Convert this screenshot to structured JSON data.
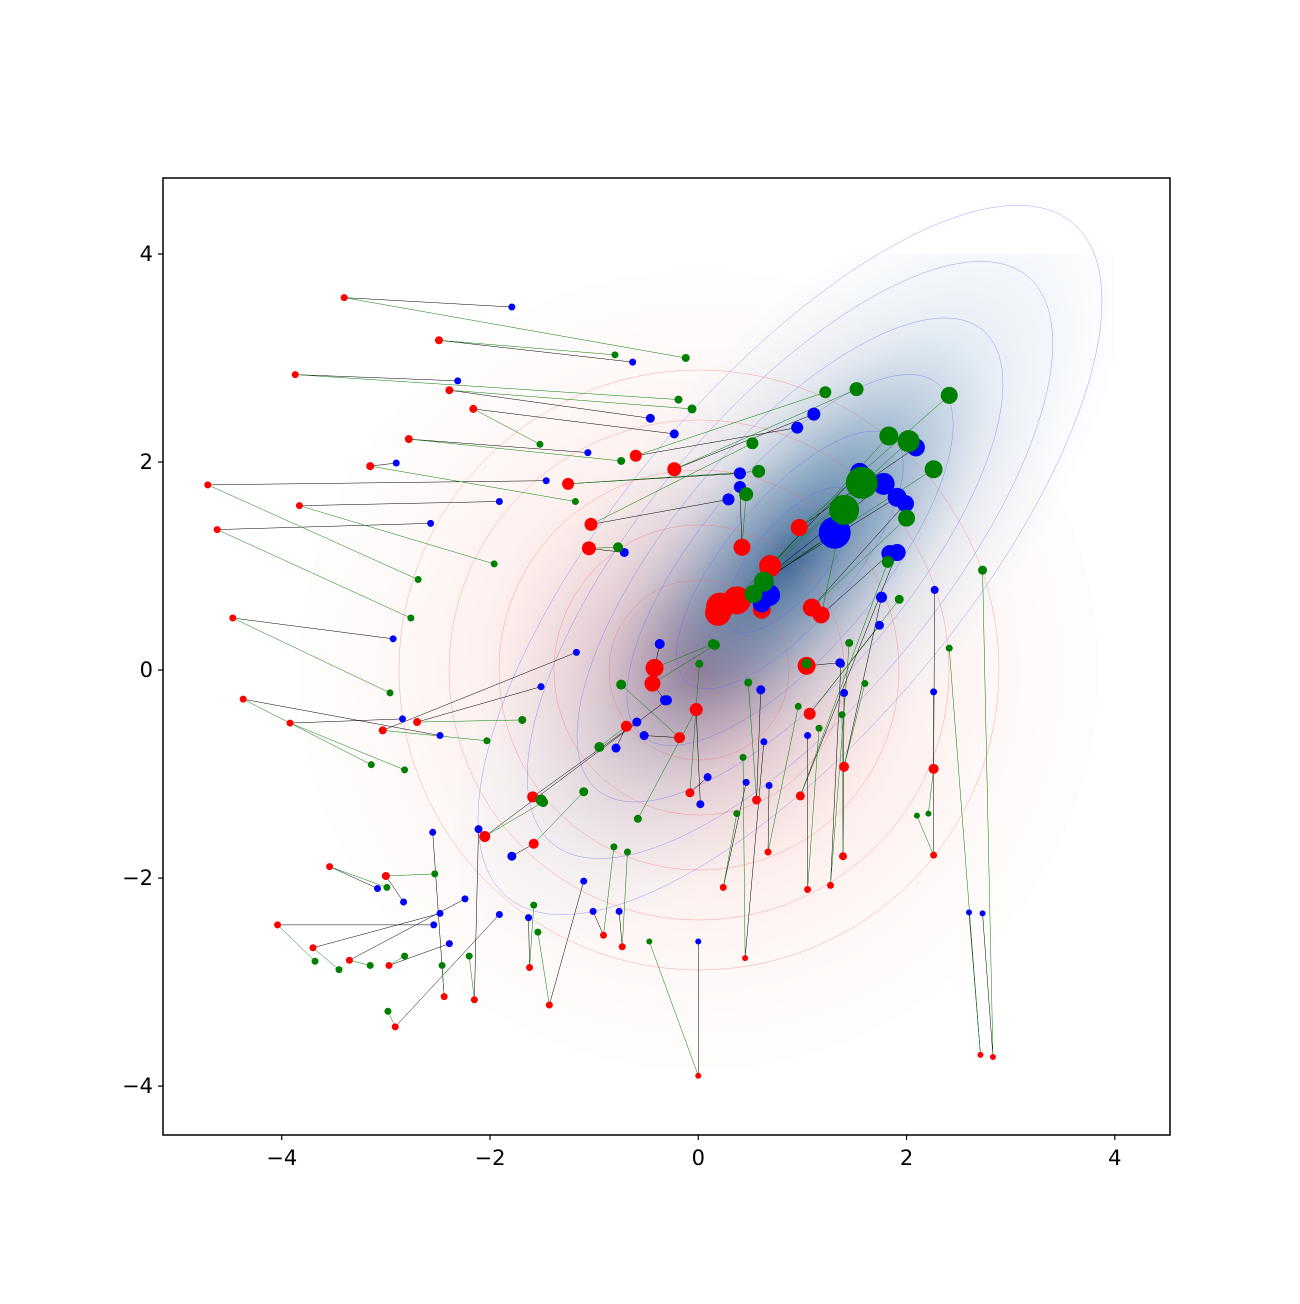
{
  "chart_data": {
    "type": "scatter",
    "xlim": [
      -5.14,
      4.53
    ],
    "ylim": [
      -4.47,
      4.73
    ],
    "xticks": [
      {
        "value": -4,
        "label": "−4"
      },
      {
        "value": -2,
        "label": "−2"
      },
      0,
      2,
      4
    ],
    "yticks": [
      {
        "value": -4,
        "label": "−4"
      },
      {
        "value": -2,
        "label": "−2"
      },
      0,
      2,
      4
    ],
    "series": [
      {
        "color": "#ff0000",
        "x": [
          -3.4,
          -2.49,
          -3.87,
          -2.39,
          -2.16,
          -2.78,
          -3.15,
          -4.71,
          -3.83,
          -4.62,
          -4.47,
          -4.37,
          -3.92,
          -2.7,
          -3.03,
          -3.54,
          -3.0,
          -4.04,
          -3.7,
          -3.35,
          -2.97,
          -2.91,
          -2.44,
          -2.15,
          -1.62,
          -1.43,
          -0.91,
          -0.73,
          0.0,
          0.24,
          0.45,
          0.67,
          1.05,
          1.27,
          1.39,
          2.26,
          2.26,
          2.71,
          2.83,
          1.4,
          1.07,
          0.98,
          0.56,
          -0.08,
          -0.18,
          -0.69,
          -0.02,
          -1.58,
          -2.05,
          -1.59,
          -0.42,
          -1.05,
          -1.03,
          -1.25,
          -0.6,
          -0.23,
          0.42,
          0.97,
          0.69,
          0.37,
          0.21,
          0.19,
          1.09,
          1.18,
          1.04,
          0.61,
          -0.44,
          0.4
        ],
        "values": [
          3.58,
          3.17,
          2.84,
          2.69,
          2.51,
          2.22,
          1.96,
          1.78,
          1.58,
          1.35,
          0.5,
          -0.28,
          -0.51,
          -0.5,
          -0.58,
          -1.89,
          -1.98,
          -2.45,
          -2.67,
          -2.79,
          -2.84,
          -3.43,
          -3.14,
          -3.17,
          -2.86,
          -3.22,
          -2.55,
          -2.66,
          -3.9,
          -2.09,
          -2.77,
          -1.75,
          -2.11,
          -2.07,
          -1.79,
          -1.78,
          -0.95,
          -3.7,
          -3.72,
          -0.93,
          -0.42,
          -1.21,
          -1.25,
          -1.18,
          -0.65,
          -0.54,
          -0.38,
          -1.67,
          -1.6,
          -1.22,
          0.02,
          1.17,
          1.4,
          1.79,
          2.06,
          1.93,
          1.18,
          1.37,
          1.0,
          0.67,
          0.61,
          0.55,
          0.6,
          0.53,
          0.04,
          0.58,
          -0.13,
          0.69
        ],
        "sizes": [
          3.5,
          4,
          3.5,
          4,
          4,
          4,
          4,
          3.5,
          3.5,
          3.5,
          3.5,
          3.5,
          3.5,
          4,
          4,
          3.5,
          4,
          3.5,
          3.5,
          3.5,
          3.5,
          3.5,
          3.5,
          3.5,
          3.5,
          3.5,
          3.5,
          3.5,
          3,
          3.5,
          3,
          3.5,
          3.5,
          3.5,
          4,
          3.5,
          5,
          3,
          3,
          5,
          6,
          4.5,
          4.5,
          4.5,
          5.5,
          5.5,
          6.5,
          5,
          5.5,
          5.5,
          9,
          7,
          6.5,
          6,
          6,
          7,
          8.5,
          8.5,
          11,
          14,
          14,
          13,
          9,
          8.5,
          9,
          9,
          8,
          10
        ]
      },
      {
        "color": "#0000ff",
        "link_color": "#000000",
        "x": [
          -1.79,
          -0.63,
          -2.31,
          -0.46,
          -0.23,
          -1.06,
          -2.9,
          -1.46,
          -1.91,
          -2.57,
          -2.93,
          -2.48,
          -2.84,
          -1.51,
          -1.17,
          -3.08,
          -2.83,
          -2.54,
          -2.48,
          -2.24,
          -2.39,
          -1.91,
          -2.55,
          -2.11,
          -1.63,
          -1.1,
          -1.01,
          -0.76,
          0.0,
          0.46,
          0.63,
          0.68,
          1.05,
          1.37,
          1.4,
          2.26,
          2.27,
          2.6,
          2.73,
          1.76,
          1.74,
          1.91,
          0.6,
          0.09,
          -0.52,
          -0.79,
          0.02,
          -1.79,
          -0.3,
          -0.59,
          -0.37,
          -0.71,
          0.29,
          0.4,
          0.95,
          1.11,
          0.4,
          2.09,
          1.55,
          1.78,
          1.91,
          1.31,
          1.99,
          1.84,
          1.36,
          0.68,
          -0.32,
          0.61
        ],
        "values": [
          3.49,
          2.96,
          2.78,
          2.42,
          2.27,
          2.09,
          1.99,
          1.82,
          1.62,
          1.41,
          0.3,
          -0.63,
          -0.47,
          -0.16,
          0.17,
          -2.1,
          -2.23,
          -2.45,
          -2.34,
          -2.2,
          -2.63,
          -2.35,
          -1.56,
          -1.53,
          -2.38,
          -2.03,
          -2.32,
          -2.32,
          -2.61,
          -1.08,
          -0.69,
          -1.11,
          -0.63,
          0.06,
          -0.22,
          -0.21,
          0.77,
          -2.33,
          -2.34,
          0.7,
          0.43,
          1.13,
          -0.19,
          -1.03,
          -0.63,
          -0.75,
          -1.29,
          -1.79,
          -0.29,
          -0.5,
          0.25,
          1.13,
          1.64,
          1.89,
          2.33,
          2.46,
          1.76,
          2.14,
          1.9,
          1.79,
          1.66,
          1.32,
          1.6,
          1.12,
          0.07,
          0.72,
          -0.29,
          0.64
        ],
        "sizes": [
          3.5,
          3.5,
          3.5,
          4.5,
          4.5,
          3.5,
          3.5,
          3.5,
          3.5,
          3.5,
          3.5,
          3.5,
          3.5,
          3.5,
          3.5,
          3.5,
          3.5,
          3.5,
          3.5,
          3.5,
          3.5,
          3.5,
          3.5,
          4,
          3.5,
          3.5,
          3.5,
          3.5,
          3,
          3.5,
          3.5,
          3.5,
          3.5,
          4,
          4,
          3.5,
          4,
          3,
          3,
          5.5,
          4.5,
          8.5,
          4.5,
          4,
          4.5,
          4.5,
          4,
          4.5,
          5,
          4.5,
          5,
          4.5,
          6,
          6,
          6,
          6.5,
          6,
          9,
          9.5,
          11,
          9.5,
          16,
          8.5,
          8.5,
          4.5,
          11,
          5,
          9
        ]
      },
      {
        "color": "#008000",
        "link_color": "#008000",
        "x": [
          -0.12,
          -0.8,
          -0.19,
          -0.06,
          -1.52,
          -0.74,
          -1.18,
          -2.69,
          -1.96,
          -2.76,
          -2.96,
          -3.14,
          -2.82,
          -1.69,
          -2.03,
          -2.99,
          -2.53,
          -3.68,
          -3.45,
          -3.15,
          -2.82,
          -2.98,
          -2.46,
          -2.2,
          -1.58,
          -1.54,
          -0.81,
          -0.68,
          -0.47,
          0.37,
          0.43,
          0.96,
          1.16,
          1.45,
          1.38,
          2.1,
          2.21,
          2.41,
          2.73,
          1.6,
          1.93,
          1.82,
          0.48,
          0.01,
          -0.74,
          -0.95,
          -0.58,
          -1.1,
          -1.49,
          -1.51,
          0.14,
          -0.77,
          0.52,
          0.58,
          1.22,
          1.52,
          0.46,
          2.41,
          1.83,
          2.02,
          2.26,
          1.57,
          2.0,
          1.4,
          1.04,
          0.63,
          0.16,
          0.53
        ],
        "values": [
          3.0,
          3.03,
          2.6,
          2.51,
          2.17,
          2.01,
          1.62,
          0.87,
          1.02,
          0.5,
          -0.22,
          -0.91,
          -0.96,
          -0.48,
          -0.68,
          -2.09,
          -1.96,
          -2.8,
          -2.88,
          -2.84,
          -2.75,
          -3.28,
          -2.84,
          -2.75,
          -2.26,
          -2.52,
          -1.7,
          -1.75,
          -2.61,
          -1.38,
          -0.84,
          -0.35,
          -0.56,
          0.26,
          -0.43,
          -1.4,
          -1.38,
          0.21,
          0.96,
          -0.13,
          0.68,
          1.04,
          -0.12,
          0.06,
          -0.14,
          -0.74,
          -1.43,
          -1.17,
          -1.27,
          -1.25,
          0.25,
          1.18,
          2.18,
          1.91,
          2.67,
          2.7,
          1.69,
          2.64,
          2.25,
          2.2,
          1.93,
          1.8,
          1.46,
          1.54,
          0.06,
          0.85,
          0.24,
          0.73
        ],
        "sizes": [
          4,
          3.5,
          4,
          4.5,
          3.5,
          4,
          3.5,
          3.5,
          3.5,
          3.5,
          3.5,
          3.5,
          3.5,
          4,
          3.5,
          3.5,
          3.5,
          3.5,
          3.5,
          3.5,
          3.5,
          3.5,
          3.5,
          3.5,
          3.5,
          3.5,
          3.5,
          3.5,
          3,
          3.5,
          3.5,
          3.5,
          3.5,
          4,
          3.5,
          3,
          3,
          3.5,
          4.5,
          3.5,
          4.5,
          6,
          4,
          4,
          5,
          5,
          4,
          4.5,
          5,
          5.5,
          5,
          5,
          6,
          6.5,
          6,
          7,
          7,
          8.5,
          9.5,
          11,
          9,
          16,
          8.5,
          15,
          5,
          10,
          5,
          9
        ]
      }
    ]
  }
}
